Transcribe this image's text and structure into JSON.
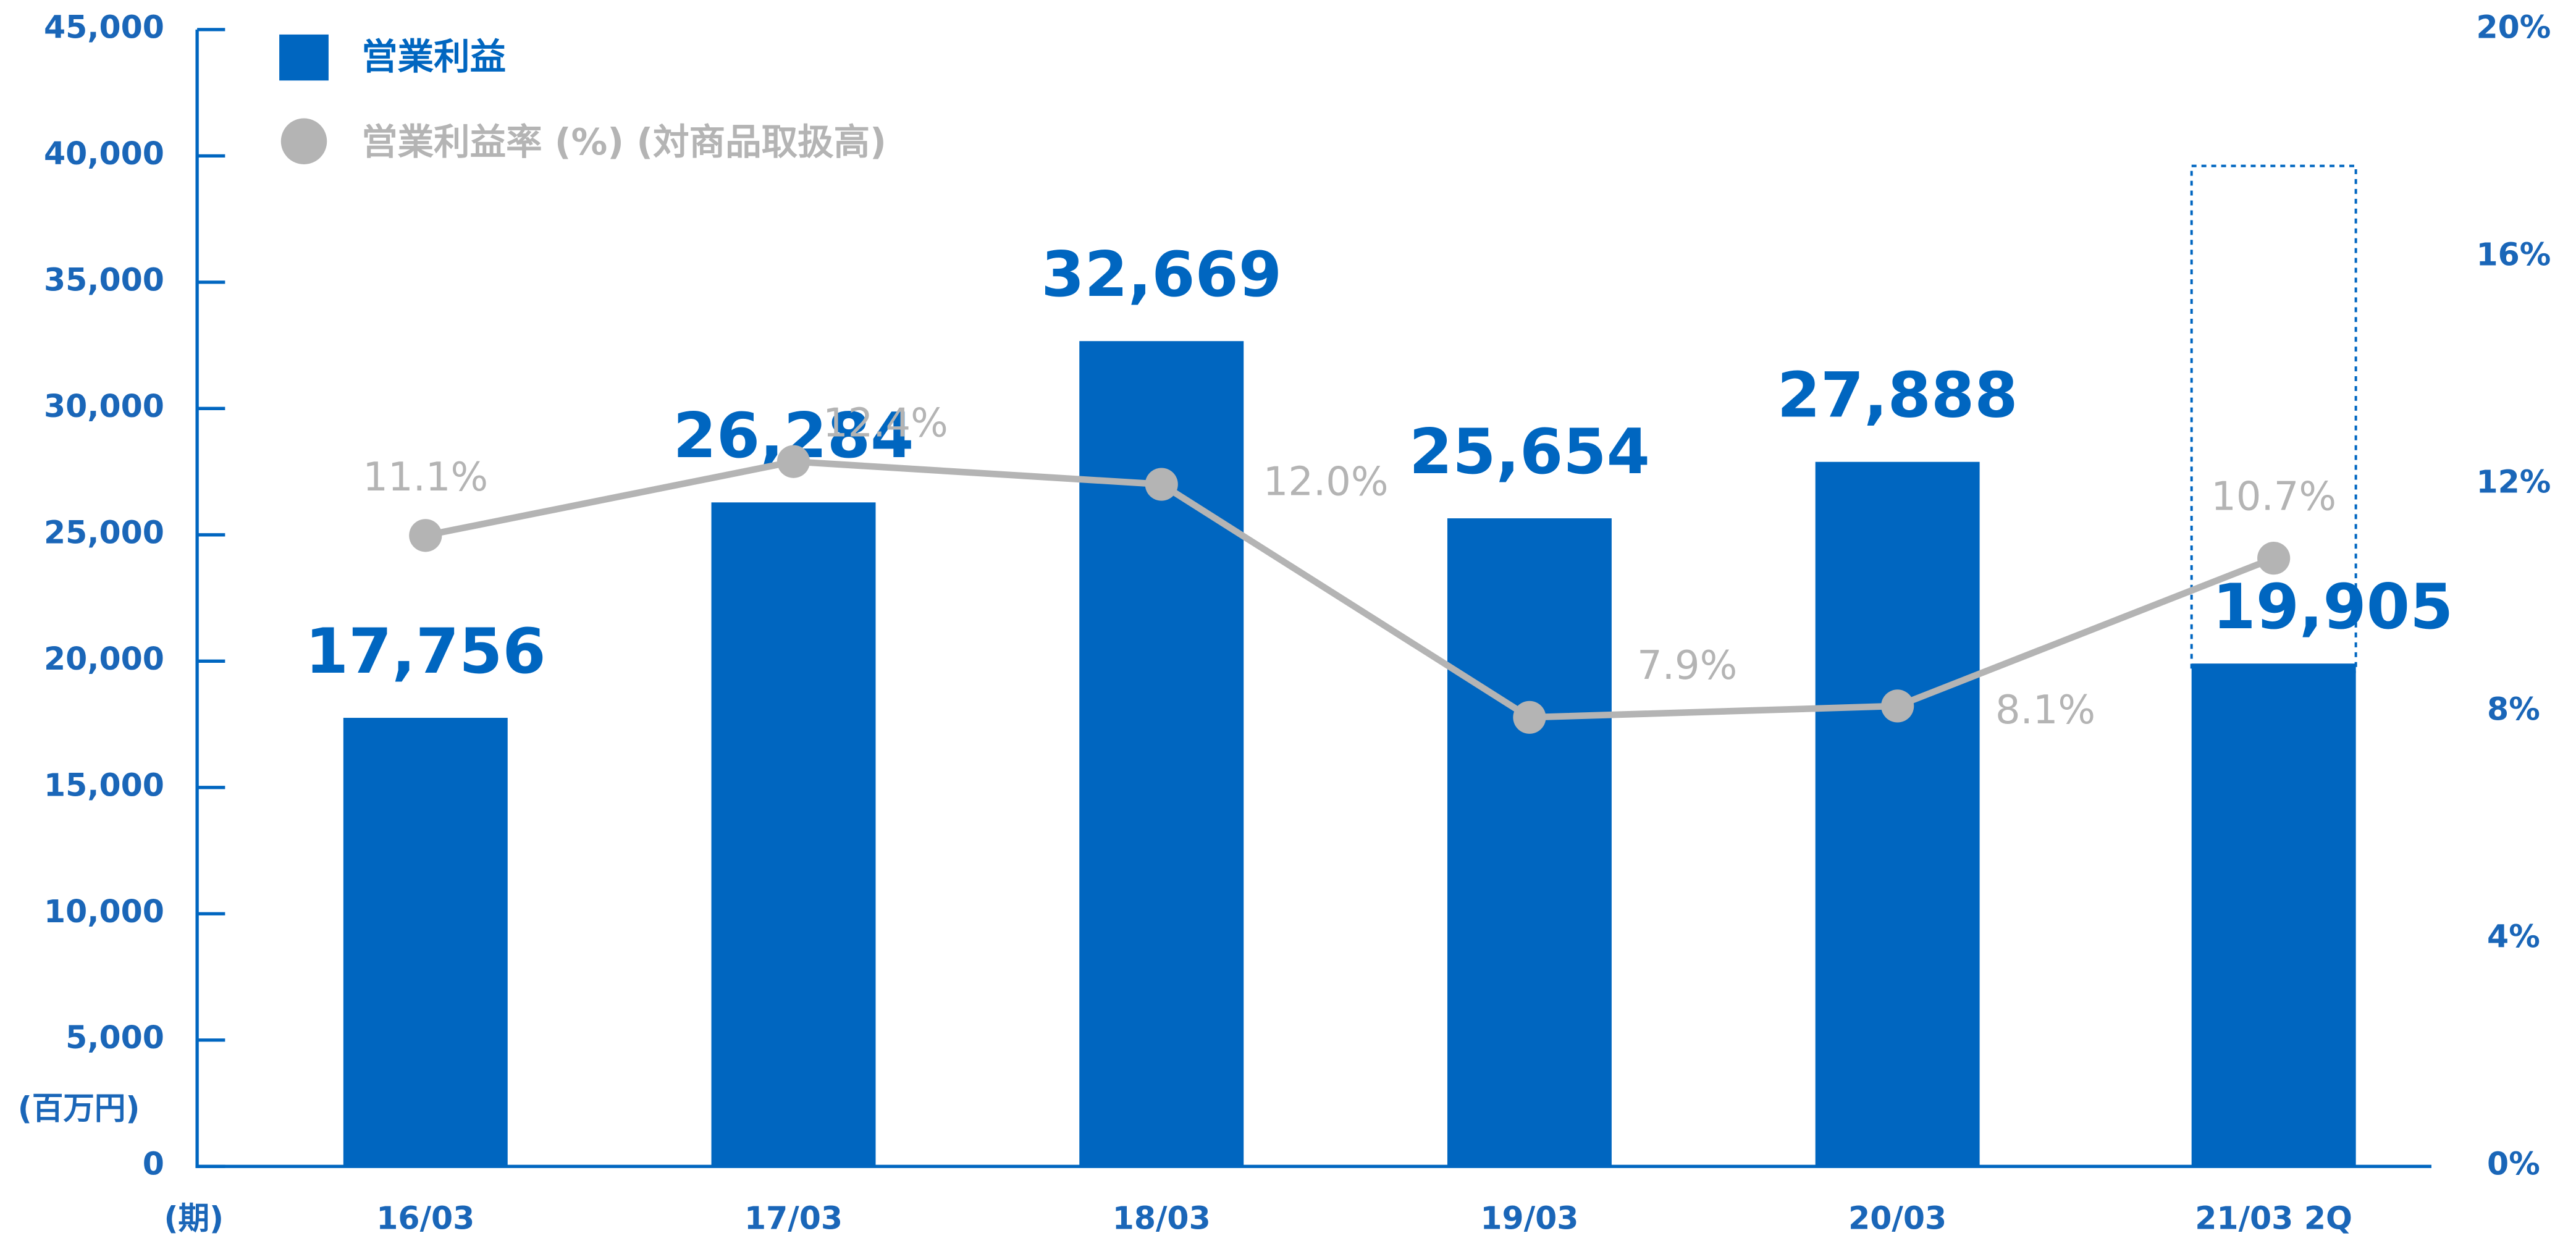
{
  "chart_data": {
    "type": "bar",
    "categories": [
      "16/03",
      "17/03",
      "18/03",
      "19/03",
      "20/03",
      "21/03 2Q"
    ],
    "x_label": "(期)",
    "y_label": "(百万円)",
    "series": [
      {
        "name": "営業利益",
        "type": "bar",
        "color": "#0066c0",
        "values": [
          17756,
          26284,
          32669,
          25654,
          27888,
          19905
        ],
        "value_labels": [
          "17,756",
          "26,284",
          "32,669",
          "25,654",
          "27,888",
          "19,905"
        ]
      },
      {
        "name": "営業利益率 (%) (対商品取扱高)",
        "type": "line",
        "axis": "y2",
        "color": "#b4b4b4",
        "values": [
          11.1,
          12.4,
          12.0,
          7.9,
          8.1,
          10.7
        ],
        "value_labels": [
          "11.1%",
          "12.4%",
          "12.0%",
          "7.9%",
          "8.1%",
          "10.7%"
        ]
      }
    ],
    "ylim": [
      0,
      45000
    ],
    "yticks": [
      0,
      {
        "value": 5000,
        "label": "5,000"
      },
      {
        "value": 10000,
        "label": "10,000"
      },
      {
        "value": 15000,
        "label": "15,000"
      },
      {
        "value": 20000,
        "label": "20,000"
      },
      {
        "value": 25000,
        "label": "25,000"
      },
      {
        "value": 30000,
        "label": "30,000"
      },
      {
        "value": 35000,
        "label": "35,000"
      },
      {
        "value": 40000,
        "label": "40,000"
      },
      {
        "value": 45000,
        "label": "45,000"
      }
    ],
    "y2lim": [
      0,
      20
    ],
    "y2ticks": [
      {
        "value": 0,
        "label": "0%"
      },
      {
        "value": 4,
        "label": "4%"
      },
      {
        "value": 8,
        "label": "8%"
      },
      {
        "value": 12,
        "label": "12%"
      },
      {
        "value": 16,
        "label": "16%"
      },
      {
        "value": 20,
        "label": "20%"
      }
    ],
    "legend": "top-left"
  }
}
